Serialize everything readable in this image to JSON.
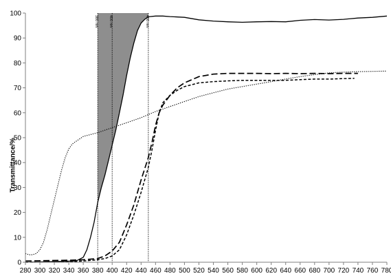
{
  "chart_data": {
    "type": "line",
    "title": "",
    "xlabel": "",
    "ylabel": "Transmittance/%",
    "xlim": [
      280,
      780
    ],
    "ylim": [
      0,
      100
    ],
    "x_ticks": [
      280,
      300,
      320,
      340,
      360,
      380,
      400,
      420,
      440,
      460,
      480,
      500,
      520,
      540,
      560,
      580,
      600,
      620,
      640,
      660,
      680,
      700,
      720,
      740,
      760,
      780
    ],
    "y_ticks": [
      0,
      10,
      20,
      30,
      40,
      50,
      60,
      70,
      80,
      90,
      100
    ],
    "grid": false,
    "legend": "none",
    "series": [
      {
        "style": "solid",
        "x": [
          280,
          350,
          360,
          365,
          370,
          375,
          380,
          385,
          390,
          395,
          400,
          405,
          410,
          415,
          420,
          425,
          430,
          435,
          440,
          445,
          450,
          460,
          470,
          480,
          500,
          520,
          540,
          560,
          580,
          600,
          620,
          640,
          660,
          680,
          700,
          720,
          740,
          760,
          780
        ],
        "y": [
          0,
          0.5,
          2,
          5,
          10,
          16,
          24,
          30,
          35,
          41,
          47,
          53,
          60,
          67,
          75,
          82,
          88,
          93,
          96,
          97.5,
          98.5,
          98.8,
          98.8,
          98.6,
          98.3,
          97.3,
          96.8,
          96.5,
          96.3,
          96.5,
          96.6,
          96.5,
          97.1,
          97.4,
          97.2,
          97.5,
          98,
          98.3,
          98.8
        ]
      },
      {
        "style": "long-dash",
        "x": [
          280,
          340,
          360,
          380,
          390,
          400,
          410,
          420,
          430,
          440,
          450,
          455,
          460,
          465,
          470,
          480,
          490,
          500,
          520,
          540,
          560,
          580,
          600,
          620,
          640,
          660,
          680,
          700,
          720,
          740
        ],
        "y": [
          0.5,
          0.8,
          1,
          1.5,
          2.5,
          4.5,
          8,
          15,
          23,
          33,
          42,
          48,
          55,
          60,
          63,
          67,
          70,
          72,
          74.5,
          75.5,
          75.8,
          75.8,
          75.8,
          75.7,
          75.8,
          75.7,
          75.8,
          75.7,
          75.8,
          75.8
        ]
      },
      {
        "style": "short-dash",
        "x": [
          280,
          340,
          360,
          380,
          390,
          400,
          410,
          420,
          430,
          440,
          450,
          455,
          460,
          465,
          470,
          480,
          490,
          500,
          520,
          540,
          560,
          580,
          600,
          620,
          640,
          660,
          680,
          700,
          720,
          735
        ],
        "y": [
          0,
          0.2,
          0.5,
          1,
          1.5,
          2.5,
          5,
          11,
          19,
          28,
          38,
          45,
          53,
          60,
          64,
          67,
          69,
          70.5,
          72,
          72.5,
          72.8,
          73,
          73,
          73,
          73,
          73.3,
          73.5,
          73.5,
          73.7,
          73.8
        ]
      },
      {
        "style": "dotted",
        "x": [
          280,
          285,
          290,
          295,
          300,
          305,
          310,
          315,
          320,
          325,
          330,
          335,
          340,
          345,
          350,
          360,
          380,
          400,
          420,
          440,
          460,
          480,
          500,
          520,
          540,
          560,
          580,
          600,
          620,
          640,
          660,
          680,
          700,
          720,
          740,
          760,
          780
        ],
        "y": [
          3.5,
          3,
          3,
          3.5,
          5,
          8,
          13,
          19,
          25,
          31,
          37,
          42,
          45.5,
          47.5,
          48.5,
          50.5,
          52,
          54,
          56,
          58,
          60.5,
          62.5,
          64.5,
          66.5,
          68,
          69.5,
          70.5,
          71.5,
          72.5,
          73.5,
          74.5,
          75.3,
          76,
          76.3,
          76.5,
          76.6,
          76.7
        ]
      }
    ],
    "shaded_region": {
      "color": "#8e8e8e",
      "x": [
        380,
        450
      ],
      "note": "area between x=380 nm and the solid curve up to 100%"
    },
    "vertical_lines": [
      {
        "x": 380,
        "label": "380 nm"
      },
      {
        "x": 400,
        "label": "400 nm"
      },
      {
        "x": 450,
        "label": "450 nm"
      }
    ]
  }
}
